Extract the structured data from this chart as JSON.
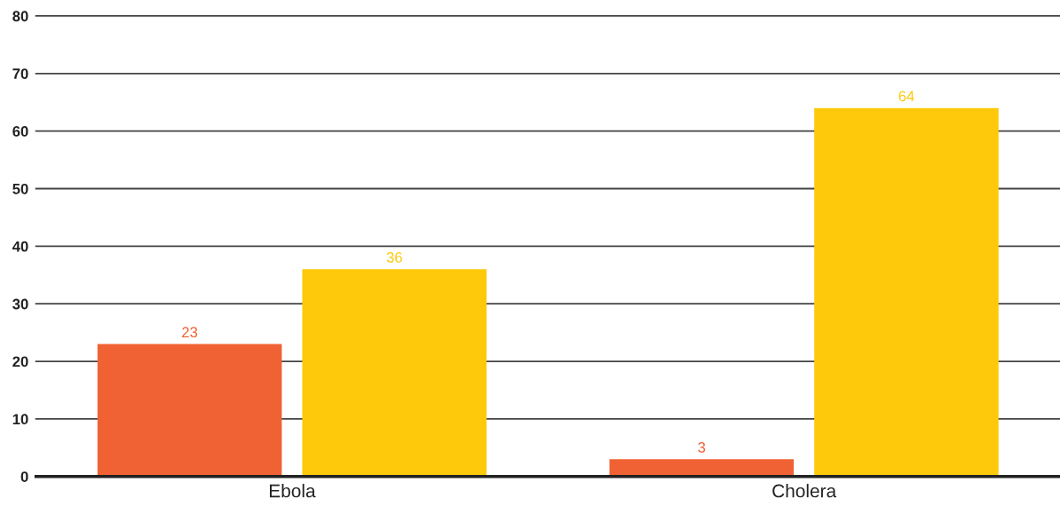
{
  "chart_data": {
    "type": "bar",
    "categories": [
      "Ebola",
      "Cholera"
    ],
    "series": [
      {
        "color": "#f06233",
        "values": [
          23,
          3
        ]
      },
      {
        "color": "#fdc90a",
        "values": [
          36,
          64
        ]
      }
    ],
    "ylim": [
      0,
      80
    ],
    "yticks": [
      0,
      10,
      20,
      30,
      40,
      50,
      60,
      70,
      80
    ],
    "grid": "y",
    "data_labels": true
  }
}
